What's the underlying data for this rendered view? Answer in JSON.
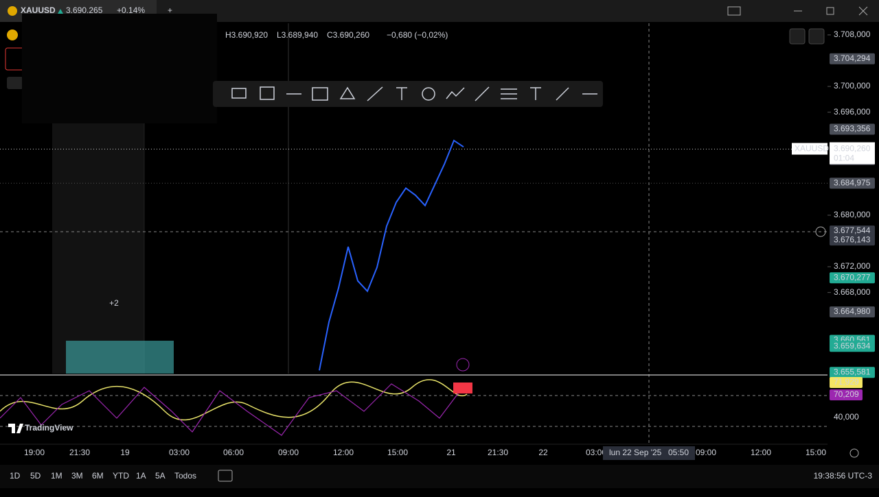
{
  "tab": {
    "symbol": "XAUUSD",
    "price": "3.690.265",
    "change": "+0.14%"
  },
  "legend": {
    "high": "H3.690,920",
    "low": "L3.689,940",
    "close": "C3.690,260",
    "change": "−0,680 (−0,02%)"
  },
  "price_axis": {
    "lim": [
      3655.4,
      3709.8
    ],
    "ticks": [
      {
        "value": 3708,
        "label": "3.708,000"
      },
      {
        "value": 3700,
        "label": "3.700,000"
      },
      {
        "value": 3696,
        "label": "3.696,000"
      },
      {
        "value": 3680,
        "label": "3.680,000"
      },
      {
        "value": 3672,
        "label": "3.672,000"
      },
      {
        "value": 3668,
        "label": "3.668,000"
      }
    ]
  },
  "price_labels": [
    {
      "value": 3704.294,
      "label": "3.704,294",
      "color": "#4a4e58"
    },
    {
      "value": 3693.356,
      "label": "3.693,356",
      "color": "#4a4e58"
    },
    {
      "value": 3688.641,
      "label": "3.688,641",
      "color": "#4a4e58"
    },
    {
      "value": 3684.975,
      "label": "3.684,975",
      "color": "#4a4e58"
    },
    {
      "value": 3677.544,
      "label": "3.677,544",
      "color": "#363a45"
    },
    {
      "value": 3676.143,
      "label": "3.676,143",
      "color": "#363a45"
    },
    {
      "value": 3670.277,
      "label": "3.670,277",
      "color": "#22ab94"
    },
    {
      "value": 3664.98,
      "label": "3.664,980",
      "color": "#4a4e58"
    },
    {
      "value": 3660.561,
      "label": "3.660,561",
      "color": "#22ab94"
    },
    {
      "value": 3659.634,
      "label": "3.659,634",
      "color": "#22ab94"
    },
    {
      "value": 3655.581,
      "label": "3.655,581",
      "color": "#22ab94"
    }
  ],
  "symbol_label": {
    "name": "XAUUSD",
    "value": 3690.26,
    "label": "3.690,260",
    "countdown": "01:04"
  },
  "price_path": {
    "color": "#2962ff",
    "values": [
      3655.9,
      3663.4,
      3668.7,
      3675.1,
      3669.8,
      3668.2,
      3671.9,
      3678.3,
      3682,
      3684.2,
      3683.1,
      3681.5,
      3684.7,
      3687.9,
      3691.6,
      3690.6
    ]
  },
  "rsi_labels": [
    {
      "label": "71,929",
      "color": "#f5e663",
      "text": "#000"
    },
    {
      "label": "70,209",
      "color": "#9c27b0",
      "text": "#fff"
    },
    {
      "label": "40,000",
      "color": "#000",
      "text": "#d1d4dc"
    }
  ],
  "time_axis": [
    "19:00",
    "21:30",
    "19",
    "03:00",
    "06:00",
    "09:00",
    "12:00",
    "15:00",
    "21",
    "21:30",
    "22",
    "03:00",
    "09:00",
    "12:00",
    "15:00"
  ],
  "crosshair_time": {
    "date": "lun 22 Sep '25",
    "time": "05:50"
  },
  "badge": "+2",
  "logo": "TradingView",
  "timeframes": [
    "1D",
    "5D",
    "1M",
    "3M",
    "6M",
    "YTD",
    "1A",
    "5A",
    "Todos"
  ],
  "clock": "19:38:56 UTC-3"
}
